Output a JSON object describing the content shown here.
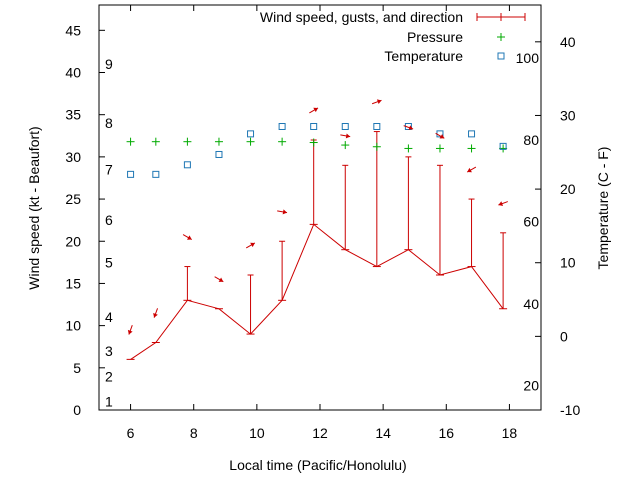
{
  "chart_data": {
    "type": "line",
    "title": "",
    "xlabel": "Local time (Pacific/Honolulu)",
    "ylabel": "Wind speed (kt - Beaufort)",
    "y2label": "Temperature (C - F)",
    "xlim": [
      5,
      19
    ],
    "ylim": [
      0,
      48
    ],
    "y2lim": [
      -10,
      45
    ],
    "x_ticks": [
      6,
      8,
      10,
      12,
      14,
      16,
      18
    ],
    "y_ticks": [
      0,
      5,
      10,
      15,
      20,
      25,
      30,
      35,
      40,
      45
    ],
    "y2_ticks": [
      -10,
      0,
      10,
      20,
      30,
      40
    ],
    "beaufort_labels": [
      {
        "label": "1",
        "y": 1
      },
      {
        "label": "2",
        "y": 4
      },
      {
        "label": "3",
        "y": 7
      },
      {
        "label": "4",
        "y": 11
      },
      {
        "label": "5",
        "y": 17.5
      },
      {
        "label": "6",
        "y": 22.5
      },
      {
        "label": "7",
        "y": 28.5
      },
      {
        "label": "8",
        "y": 34
      },
      {
        "label": "9",
        "y": 41
      }
    ],
    "fahrenheit_labels": [
      {
        "label": "20",
        "y2": -6.7
      },
      {
        "label": "40",
        "y2": 4.4
      },
      {
        "label": "60",
        "y2": 15.6
      },
      {
        "label": "80",
        "y2": 26.7
      },
      {
        "label": "100",
        "y2": 37.8
      }
    ],
    "legend": {
      "position": "top-right",
      "entries": [
        "Wind speed, gusts, and direction",
        "Pressure",
        "Temperature"
      ]
    },
    "series": [
      {
        "name": "Wind speed, gusts, and direction",
        "axis": "y",
        "color": "#cc0000",
        "x": [
          6,
          6.8,
          7.8,
          8.8,
          9.8,
          10.8,
          11.8,
          12.8,
          13.8,
          14.8,
          15.8,
          16.8,
          17.8
        ],
        "values": [
          6,
          8,
          13,
          12,
          9,
          13,
          22,
          19,
          17,
          19,
          16,
          17,
          12
        ],
        "gusts": [
          null,
          null,
          17,
          null,
          16,
          20,
          32,
          29,
          33,
          30,
          29,
          25,
          21
        ],
        "direction_deg": [
          20,
          20,
          300,
          300,
          240,
          280,
          240,
          280,
          250,
          290,
          300,
          60,
          70
        ]
      },
      {
        "name": "Pressure",
        "axis": "y",
        "color": "#00aa00",
        "x": [
          6,
          6.8,
          7.8,
          8.8,
          9.8,
          10.8,
          11.8,
          12.8,
          13.8,
          14.8,
          15.8,
          16.8,
          17.8
        ],
        "values": [
          31.8,
          31.8,
          31.8,
          31.8,
          31.8,
          31.8,
          31.7,
          31.4,
          31.2,
          31,
          31,
          31,
          31
        ]
      },
      {
        "name": "Temperature",
        "axis": "y2",
        "color": "#1f77b4",
        "x": [
          6,
          6.8,
          7.8,
          8.8,
          9.8,
          10.8,
          11.8,
          12.8,
          13.8,
          14.8,
          15.8,
          16.8,
          17.8
        ],
        "values": [
          22,
          22,
          23.3,
          24.7,
          27.5,
          28.5,
          28.5,
          28.5,
          28.5,
          28.5,
          27.5,
          27.5,
          25.8
        ]
      }
    ]
  }
}
